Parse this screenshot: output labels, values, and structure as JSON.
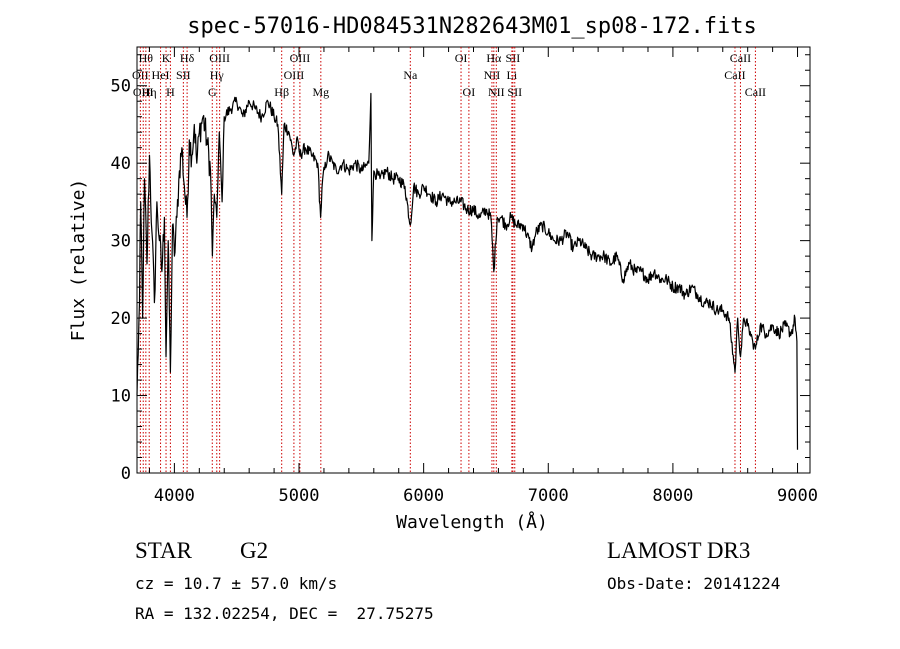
{
  "chart_data": {
    "type": "line",
    "title": "spec-57016-HD084531N282643M01_sp08-172.fits",
    "xlabel": "Wavelength (Å)",
    "ylabel": "Flux (relative)",
    "xlim": [
      3700,
      9100
    ],
    "ylim": [
      0,
      55
    ],
    "xticks": [
      4000,
      5000,
      6000,
      7000,
      8000,
      9000
    ],
    "yticks": [
      0,
      10,
      20,
      30,
      40,
      50
    ],
    "grid": false,
    "line_color": "#000000",
    "marker_color": "#cc0000",
    "spectrum": [
      [
        3700,
        10
      ],
      [
        3720,
        22
      ],
      [
        3730,
        35
      ],
      [
        3745,
        20
      ],
      [
        3760,
        38
      ],
      [
        3780,
        27
      ],
      [
        3800,
        41
      ],
      [
        3820,
        31
      ],
      [
        3840,
        22
      ],
      [
        3860,
        35
      ],
      [
        3880,
        30
      ],
      [
        3900,
        26
      ],
      [
        3920,
        33
      ],
      [
        3933,
        15
      ],
      [
        3950,
        30
      ],
      [
        3968,
        13
      ],
      [
        3985,
        32
      ],
      [
        4000,
        28
      ],
      [
        4020,
        33
      ],
      [
        4040,
        39
      ],
      [
        4060,
        42
      ],
      [
        4080,
        37
      ],
      [
        4101,
        33
      ],
      [
        4120,
        43
      ],
      [
        4140,
        41
      ],
      [
        4160,
        45
      ],
      [
        4180,
        40
      ],
      [
        4200,
        44
      ],
      [
        4230,
        46
      ],
      [
        4260,
        43
      ],
      [
        4290,
        39
      ],
      [
        4305,
        28
      ],
      [
        4320,
        36
      ],
      [
        4340,
        33
      ],
      [
        4360,
        44
      ],
      [
        4383,
        35
      ],
      [
        4400,
        46
      ],
      [
        4450,
        47
      ],
      [
        4500,
        48
      ],
      [
        4550,
        46
      ],
      [
        4600,
        48
      ],
      [
        4650,
        47
      ],
      [
        4700,
        46
      ],
      [
        4750,
        48
      ],
      [
        4800,
        46
      ],
      [
        4830,
        45
      ],
      [
        4861,
        36
      ],
      [
        4880,
        45
      ],
      [
        4920,
        44
      ],
      [
        4957,
        41
      ],
      [
        4990,
        43
      ],
      [
        5007,
        41
      ],
      [
        5050,
        42
      ],
      [
        5100,
        41
      ],
      [
        5150,
        40
      ],
      [
        5173,
        33
      ],
      [
        5190,
        38
      ],
      [
        5230,
        41
      ],
      [
        5270,
        40
      ],
      [
        5300,
        39
      ],
      [
        5350,
        40
      ],
      [
        5400,
        39
      ],
      [
        5450,
        40
      ],
      [
        5500,
        39
      ],
      [
        5560,
        40
      ],
      [
        5577,
        49
      ],
      [
        5585,
        30
      ],
      [
        5600,
        39
      ],
      [
        5650,
        38
      ],
      [
        5700,
        39
      ],
      [
        5750,
        38
      ],
      [
        5800,
        38
      ],
      [
        5850,
        37
      ],
      [
        5893,
        32
      ],
      [
        5920,
        37
      ],
      [
        5960,
        36
      ],
      [
        6000,
        37
      ],
      [
        6050,
        36
      ],
      [
        6100,
        35
      ],
      [
        6150,
        36
      ],
      [
        6200,
        35
      ],
      [
        6250,
        35
      ],
      [
        6300,
        35
      ],
      [
        6350,
        34
      ],
      [
        6400,
        34
      ],
      [
        6450,
        33
      ],
      [
        6500,
        34
      ],
      [
        6540,
        33
      ],
      [
        6563,
        26
      ],
      [
        6590,
        33
      ],
      [
        6620,
        33
      ],
      [
        6660,
        32
      ],
      [
        6700,
        33
      ],
      [
        6740,
        32
      ],
      [
        6800,
        32
      ],
      [
        6870,
        29
      ],
      [
        6900,
        31
      ],
      [
        6950,
        32
      ],
      [
        7000,
        31
      ],
      [
        7050,
        30
      ],
      [
        7100,
        30
      ],
      [
        7150,
        31
      ],
      [
        7200,
        29
      ],
      [
        7250,
        30
      ],
      [
        7300,
        29
      ],
      [
        7350,
        28
      ],
      [
        7400,
        28
      ],
      [
        7450,
        28
      ],
      [
        7500,
        27
      ],
      [
        7550,
        28
      ],
      [
        7600,
        25
      ],
      [
        7650,
        27
      ],
      [
        7700,
        26
      ],
      [
        7750,
        26
      ],
      [
        7800,
        25
      ],
      [
        7850,
        26
      ],
      [
        7900,
        25
      ],
      [
        7950,
        25
      ],
      [
        8000,
        24
      ],
      [
        8050,
        24
      ],
      [
        8100,
        23
      ],
      [
        8150,
        24
      ],
      [
        8200,
        23
      ],
      [
        8250,
        22
      ],
      [
        8300,
        22
      ],
      [
        8350,
        21
      ],
      [
        8400,
        21
      ],
      [
        8450,
        20
      ],
      [
        8498,
        13
      ],
      [
        8520,
        20
      ],
      [
        8542,
        15
      ],
      [
        8570,
        20
      ],
      [
        8600,
        19
      ],
      [
        8640,
        17
      ],
      [
        8662,
        16
      ],
      [
        8700,
        19
      ],
      [
        8750,
        18
      ],
      [
        8800,
        19
      ],
      [
        8850,
        18
      ],
      [
        8900,
        19
      ],
      [
        8950,
        18
      ],
      [
        8980,
        20
      ],
      [
        8995,
        17
      ],
      [
        9000,
        3
      ]
    ],
    "line_markers": [
      {
        "wavelength": 3727,
        "label": "OII",
        "row": 1
      },
      {
        "wavelength": 3750,
        "label": "OIII",
        "row": 2
      },
      {
        "wavelength": 3771,
        "label": "Hθ",
        "row": 0
      },
      {
        "wavelength": 3798,
        "label": "Hη",
        "row": 2
      },
      {
        "wavelength": 3889,
        "label": "HeI",
        "row": 1
      },
      {
        "wavelength": 3933,
        "label": "K",
        "row": 0
      },
      {
        "wavelength": 3968,
        "label": "H",
        "row": 2
      },
      {
        "wavelength": 4072,
        "label": "SII",
        "row": 1
      },
      {
        "wavelength": 4102,
        "label": "Hδ",
        "row": 0
      },
      {
        "wavelength": 4304,
        "label": "G",
        "row": 2
      },
      {
        "wavelength": 4340,
        "label": "Hγ",
        "row": 1
      },
      {
        "wavelength": 4363,
        "label": "OIII",
        "row": 0
      },
      {
        "wavelength": 4861,
        "label": "Hβ",
        "row": 2
      },
      {
        "wavelength": 4959,
        "label": "OIII",
        "row": 1
      },
      {
        "wavelength": 5007,
        "label": "OIII",
        "row": 0
      },
      {
        "wavelength": 5175,
        "label": "Mg",
        "row": 2
      },
      {
        "wavelength": 5893,
        "label": "Na",
        "row": 1
      },
      {
        "wavelength": 6300,
        "label": "OI",
        "row": 0
      },
      {
        "wavelength": 6363,
        "label": "OI",
        "row": 2
      },
      {
        "wavelength": 6548,
        "label": "NII",
        "row": 1
      },
      {
        "wavelength": 6563,
        "label": "Hα",
        "row": 0
      },
      {
        "wavelength": 6583,
        "label": "NII",
        "row": 2
      },
      {
        "wavelength": 6708,
        "label": "Li",
        "row": 1
      },
      {
        "wavelength": 6716,
        "label": "SII",
        "row": 0
      },
      {
        "wavelength": 6731,
        "label": "SII",
        "row": 2
      },
      {
        "wavelength": 8498,
        "label": "CaII",
        "row": 1
      },
      {
        "wavelength": 8542,
        "label": "CaII",
        "row": 0
      },
      {
        "wavelength": 8662,
        "label": "CaII",
        "row": 2
      }
    ]
  },
  "info": {
    "object_class": "STAR",
    "subclass": "G2",
    "survey": "LAMOST DR3",
    "cz": "cz = 10.7 ± 57.0 km/s",
    "obs_date": "Obs-Date: 20141224",
    "coords": "RA = 132.02254, DEC =  27.75275"
  }
}
